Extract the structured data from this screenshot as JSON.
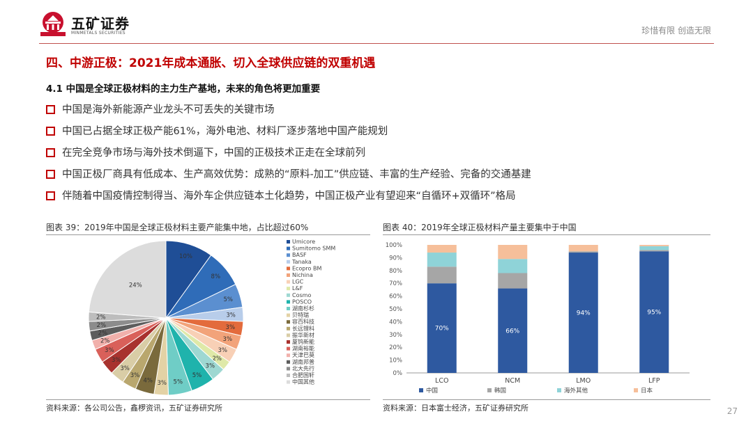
{
  "header": {
    "logo_text": "五矿证券",
    "logo_sub": "MINMETALS SECURITIES",
    "slogan": "珍惜有限 创造无限"
  },
  "section_title": "四、中游正极：2021年成本通胀、切入全球供应链的双重机遇",
  "sub_title": "4.1 中国是全球正极材料的主力生产基地，未来的角色将更加重要",
  "bullets": [
    "中国是海外新能源产业龙头不可丢失的关键市场",
    "中国已占据全球正极产能61%，海外电池、材料厂逐步落地中国产能规划",
    "在完全竞争市场与海外技术倒逼下，中国的正极技术正走在全球前列",
    "中国正极厂商具有低成本、生产高效优势：成熟的“原料-加工”供应链、丰富的生产经验、完备的交通基建",
    "伴随着中国疫情控制得当、海外车企供应链本土化趋势，中国正极产业有望迎来“自循环+双循环”格局"
  ],
  "figure1": {
    "caption": "图表 39：2019年中国是全球正极材料主要产能集中地，占比超过60%",
    "source": "资料来源：各公司公告，鑫椤资讯，五矿证券研究所"
  },
  "figure2": {
    "caption": "图表 40：2019年全球正极材料产量主要集中于中国",
    "source": "资料来源：日本富士经济，五矿证券研究所"
  },
  "page_number": "27",
  "chart_data": [
    {
      "type": "pie",
      "slices": [
        {
          "name": "Umicore",
          "value": 10,
          "label": "10%",
          "color": "#1f4e96"
        },
        {
          "name": "Sumitomo SMM",
          "value": 8,
          "label": "8%",
          "color": "#2f6cb8"
        },
        {
          "name": "BASF",
          "value": 5,
          "label": "5%",
          "color": "#5b8fd0"
        },
        {
          "name": "Tanaka",
          "value": 3,
          "label": "3%",
          "color": "#b8cdea"
        },
        {
          "name": "Ecopro BM",
          "value": 3,
          "label": "3%",
          "color": "#e36b3c"
        },
        {
          "name": "Nichina",
          "value": 3,
          "label": "3%",
          "color": "#f2a37a"
        },
        {
          "name": "LGC",
          "value": 3,
          "label": "3%",
          "color": "#f8d0b6"
        },
        {
          "name": "L&F",
          "value": 2,
          "label": "2%",
          "color": "#dfe9a8"
        },
        {
          "name": "Cosmo",
          "value": 3,
          "label": "3%",
          "color": "#9ed8d2"
        },
        {
          "name": "POSCO",
          "value": 5,
          "label": "5%",
          "color": "#1fb3ac"
        },
        {
          "name": "湖南杉杉",
          "value": 5,
          "label": "5%",
          "color": "#6fcdc6"
        },
        {
          "name": "贝特瑞",
          "value": 3,
          "label": "3%",
          "color": "#e3d2a5"
        },
        {
          "name": "容百科技",
          "value": 4,
          "label": "4%",
          "color": "#7a6a3c"
        },
        {
          "name": "长远锂科",
          "value": 3,
          "label": "3%",
          "color": "#b9a76e"
        },
        {
          "name": "振华新材",
          "value": 3,
          "label": "3%",
          "color": "#d9cda6"
        },
        {
          "name": "厦钨新能",
          "value": 3,
          "label": "3%",
          "color": "#a8322e"
        },
        {
          "name": "湖南裕能",
          "value": 3,
          "label": "3%",
          "color": "#d9605a"
        },
        {
          "name": "天津巴莫",
          "value": 2,
          "label": "2%",
          "color": "#f1b0ab"
        },
        {
          "name": "湖南邦普",
          "value": 2,
          "label": "2%",
          "color": "#5d5d5d"
        },
        {
          "name": "北大先行",
          "value": 2,
          "label": "2%",
          "color": "#8c8c8c"
        },
        {
          "name": "合肥国轩",
          "value": 2,
          "label": "2%",
          "color": "#bdbdbd"
        },
        {
          "name": "中国其他",
          "value": 24,
          "label": "24%",
          "color": "#dcdcdc"
        }
      ],
      "legend_position": "right"
    },
    {
      "type": "bar",
      "stacked": true,
      "categories": [
        "LCO",
        "NCM",
        "LMO",
        "LFP"
      ],
      "ylim": [
        0,
        100
      ],
      "yticks": [
        "0%",
        "10%",
        "20%",
        "30%",
        "40%",
        "50%",
        "60%",
        "70%",
        "80%",
        "90%",
        "100%"
      ],
      "series": [
        {
          "name": "中国",
          "values": [
            70,
            66,
            94,
            95
          ],
          "labels": [
            "70%",
            "66%",
            "94%",
            "95%"
          ],
          "color": "#2e59a0"
        },
        {
          "name": "韩国",
          "values": [
            13,
            12,
            1,
            1
          ],
          "color": "#a6a6a6"
        },
        {
          "name": "海外其他",
          "values": [
            11,
            11,
            0,
            3
          ],
          "color": "#8fd3d8"
        },
        {
          "name": "日本",
          "values": [
            6,
            11,
            5,
            1
          ],
          "color": "#f6bf9a"
        }
      ],
      "legend_position": "bottom"
    }
  ]
}
